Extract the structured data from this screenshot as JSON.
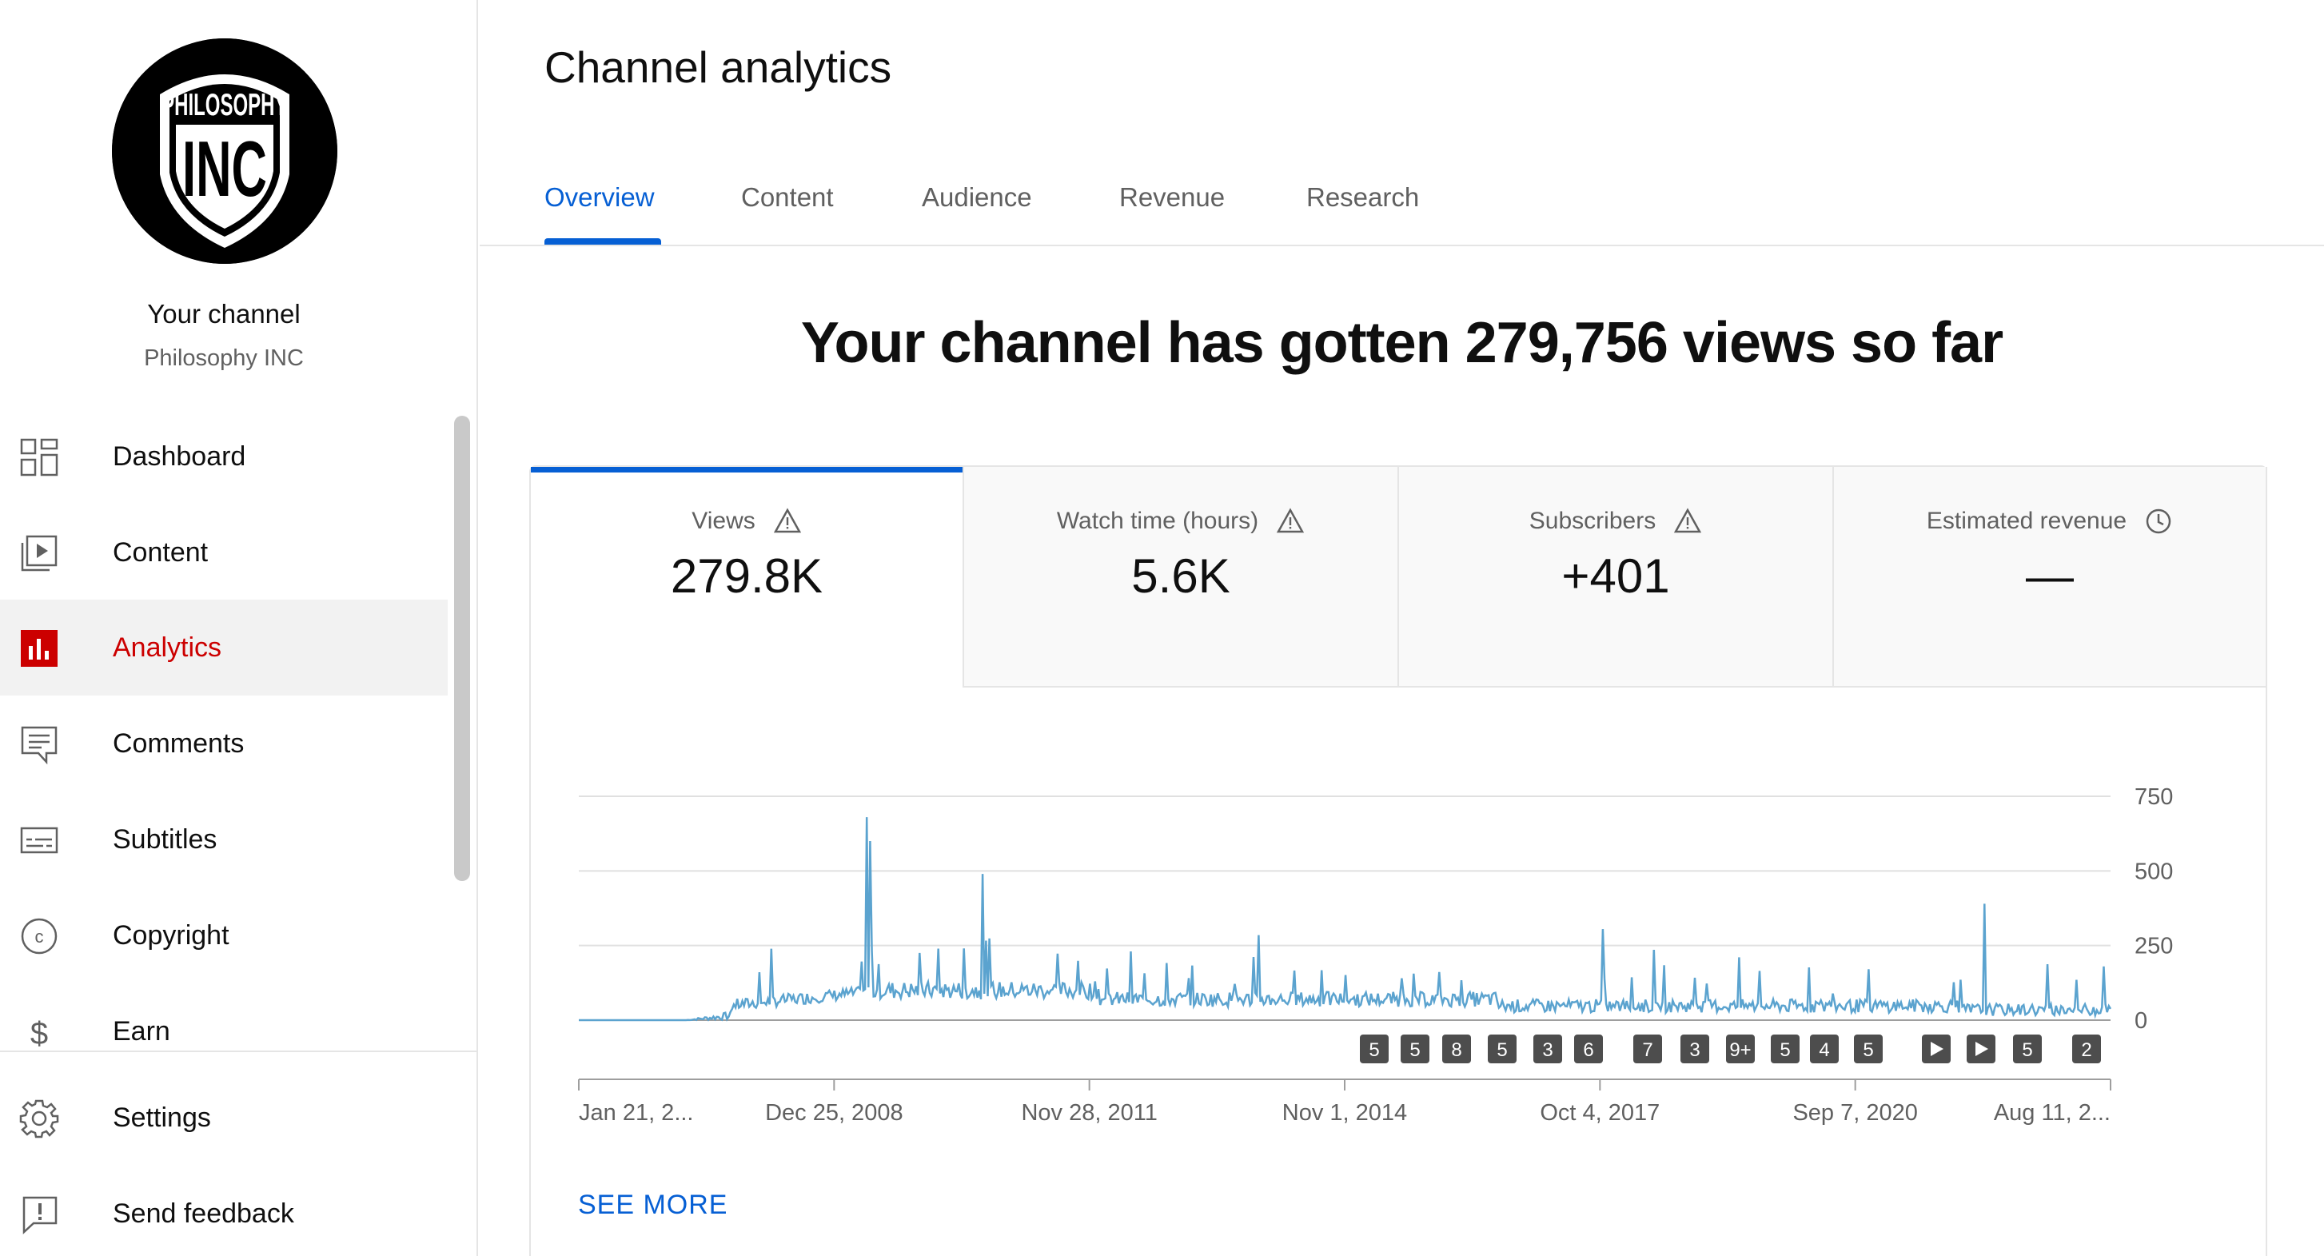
{
  "sidebar": {
    "avatar": {
      "top_text": "PHILOSOPHY",
      "big_text": "INC"
    },
    "channel_title": "Your channel",
    "channel_name": "Philosophy INC",
    "items": [
      {
        "label": "Dashboard",
        "icon": "dashboard-icon"
      },
      {
        "label": "Content",
        "icon": "content-icon"
      },
      {
        "label": "Analytics",
        "icon": "analytics-icon",
        "active": true
      },
      {
        "label": "Comments",
        "icon": "comments-icon"
      },
      {
        "label": "Subtitles",
        "icon": "subtitles-icon"
      },
      {
        "label": "Copyright",
        "icon": "copyright-icon"
      },
      {
        "label": "Earn",
        "icon": "earn-icon"
      }
    ],
    "footer_items": [
      {
        "label": "Settings",
        "icon": "settings-icon"
      },
      {
        "label": "Send feedback",
        "icon": "feedback-icon"
      }
    ]
  },
  "page": {
    "title": "Channel analytics",
    "tabs": [
      "Overview",
      "Content",
      "Audience",
      "Revenue",
      "Research"
    ],
    "active_tab": "Overview",
    "headline": "Your channel has gotten 279,756 views so far"
  },
  "metrics": [
    {
      "label": "Views",
      "value": "279.8K",
      "icon": "warning-icon",
      "active": true
    },
    {
      "label": "Watch time (hours)",
      "value": "5.6K",
      "icon": "warning-icon"
    },
    {
      "label": "Subscribers",
      "value": "+401",
      "icon": "warning-icon"
    },
    {
      "label": "Estimated revenue",
      "value": "—",
      "icon": "clock-icon"
    }
  ],
  "chart_data": {
    "type": "line",
    "series": [
      {
        "values_note": "",
        "color": "#5ba3cf"
      }
    ],
    "x_ticks": [
      "Jan 21, 2...",
      "Dec 25, 2008",
      "Nov 28, 2011",
      "Nov 1, 2014",
      "Oct 4, 2017",
      "Sep 7, 2020",
      "Aug 11, 2..."
    ],
    "y_ticks": [
      "750",
      "500",
      "250",
      "0"
    ],
    "ylim": [
      0,
      750
    ],
    "grid": true,
    "peaks": [
      {
        "x": "Dec 2008",
        "y": 680
      },
      {
        "x": "Apr 2010",
        "y": 490
      },
      {
        "x": "Feb 2014",
        "y": 280
      },
      {
        "x": "Aug 2017",
        "y": 300
      },
      {
        "x": "Oct 2021",
        "y": 390
      },
      {
        "x": "Jul 2023",
        "y": 180
      }
    ],
    "markers": [
      "5",
      "5",
      "8",
      "5",
      "3",
      "6",
      "7",
      "3",
      "9+",
      "5",
      "4",
      "5",
      "play",
      "play",
      "5",
      "2"
    ]
  },
  "see_more": "SEE MORE",
  "colors": {
    "accent": "#065fd4",
    "active_nav": "#cc0000",
    "line": "#5ba3cf"
  }
}
